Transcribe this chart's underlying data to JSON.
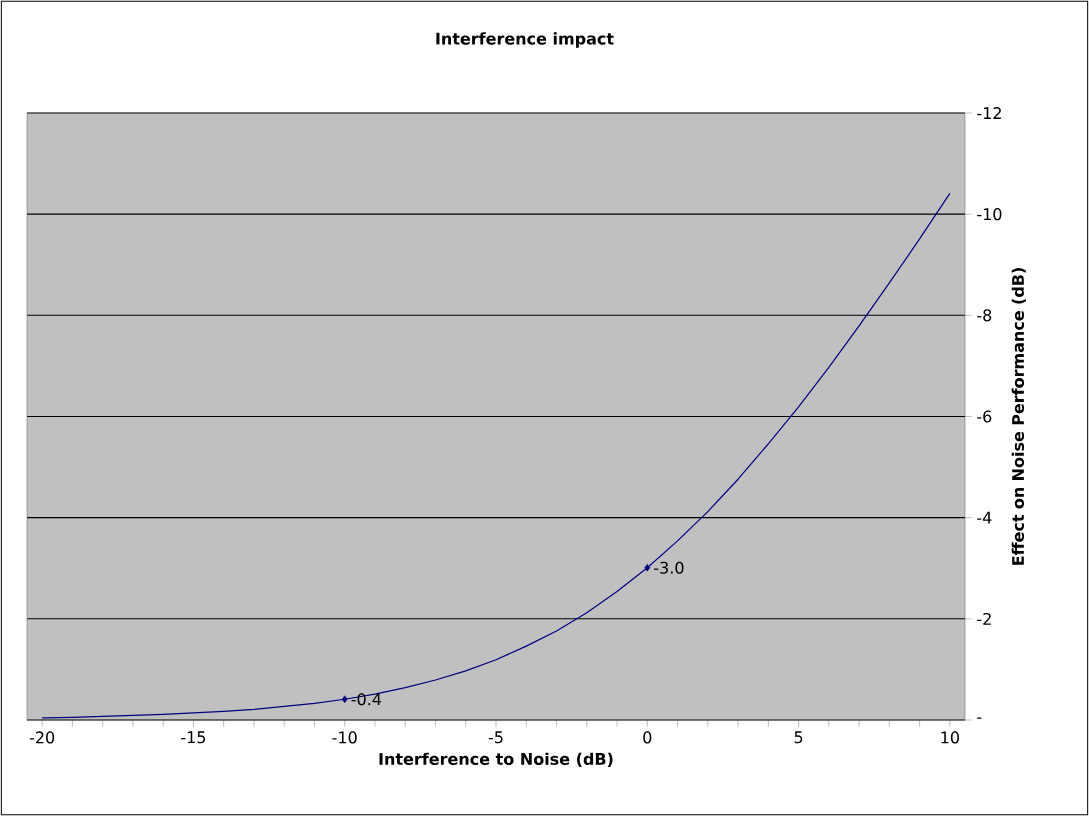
{
  "chart_data": {
    "type": "line",
    "title": "Interference impact",
    "xlabel": "Interference to Noise (dB)",
    "ylabel": "Effect on Noise Performance (dB)",
    "categories": [
      "-20",
      null,
      null,
      null,
      null,
      "-15",
      null,
      null,
      null,
      null,
      "-10",
      null,
      null,
      null,
      null,
      "-5",
      null,
      null,
      null,
      null,
      "0",
      null,
      null,
      null,
      null,
      "5",
      null,
      null,
      null,
      null,
      "10"
    ],
    "series": [
      {
        "color": "#000080",
        "marker": "none",
        "values": [
          -0.04,
          -0.05,
          -0.07,
          -0.09,
          -0.11,
          -0.14,
          -0.17,
          -0.21,
          -0.27,
          -0.33,
          -0.41,
          -0.51,
          -0.64,
          -0.79,
          -0.97,
          -1.19,
          -1.46,
          -1.76,
          -2.12,
          -2.54,
          -3.01,
          -3.54,
          -4.12,
          -4.76,
          -5.46,
          -6.19,
          -6.97,
          -7.79,
          -8.64,
          -9.51,
          -10.41
        ]
      },
      {
        "type": "scatter",
        "color": "#000080",
        "marker": "diamond",
        "x": [
          "-10",
          "0"
        ],
        "values": [
          -0.41,
          -3.01
        ],
        "value_labels": [
          "-0.4",
          "-3.0"
        ]
      }
    ],
    "ylim": [
      0,
      -12
    ],
    "yticks": [
      {
        "value": 0,
        "label": "-"
      },
      -2,
      -4,
      -6,
      -8,
      -10,
      -12
    ],
    "grid": "y"
  }
}
